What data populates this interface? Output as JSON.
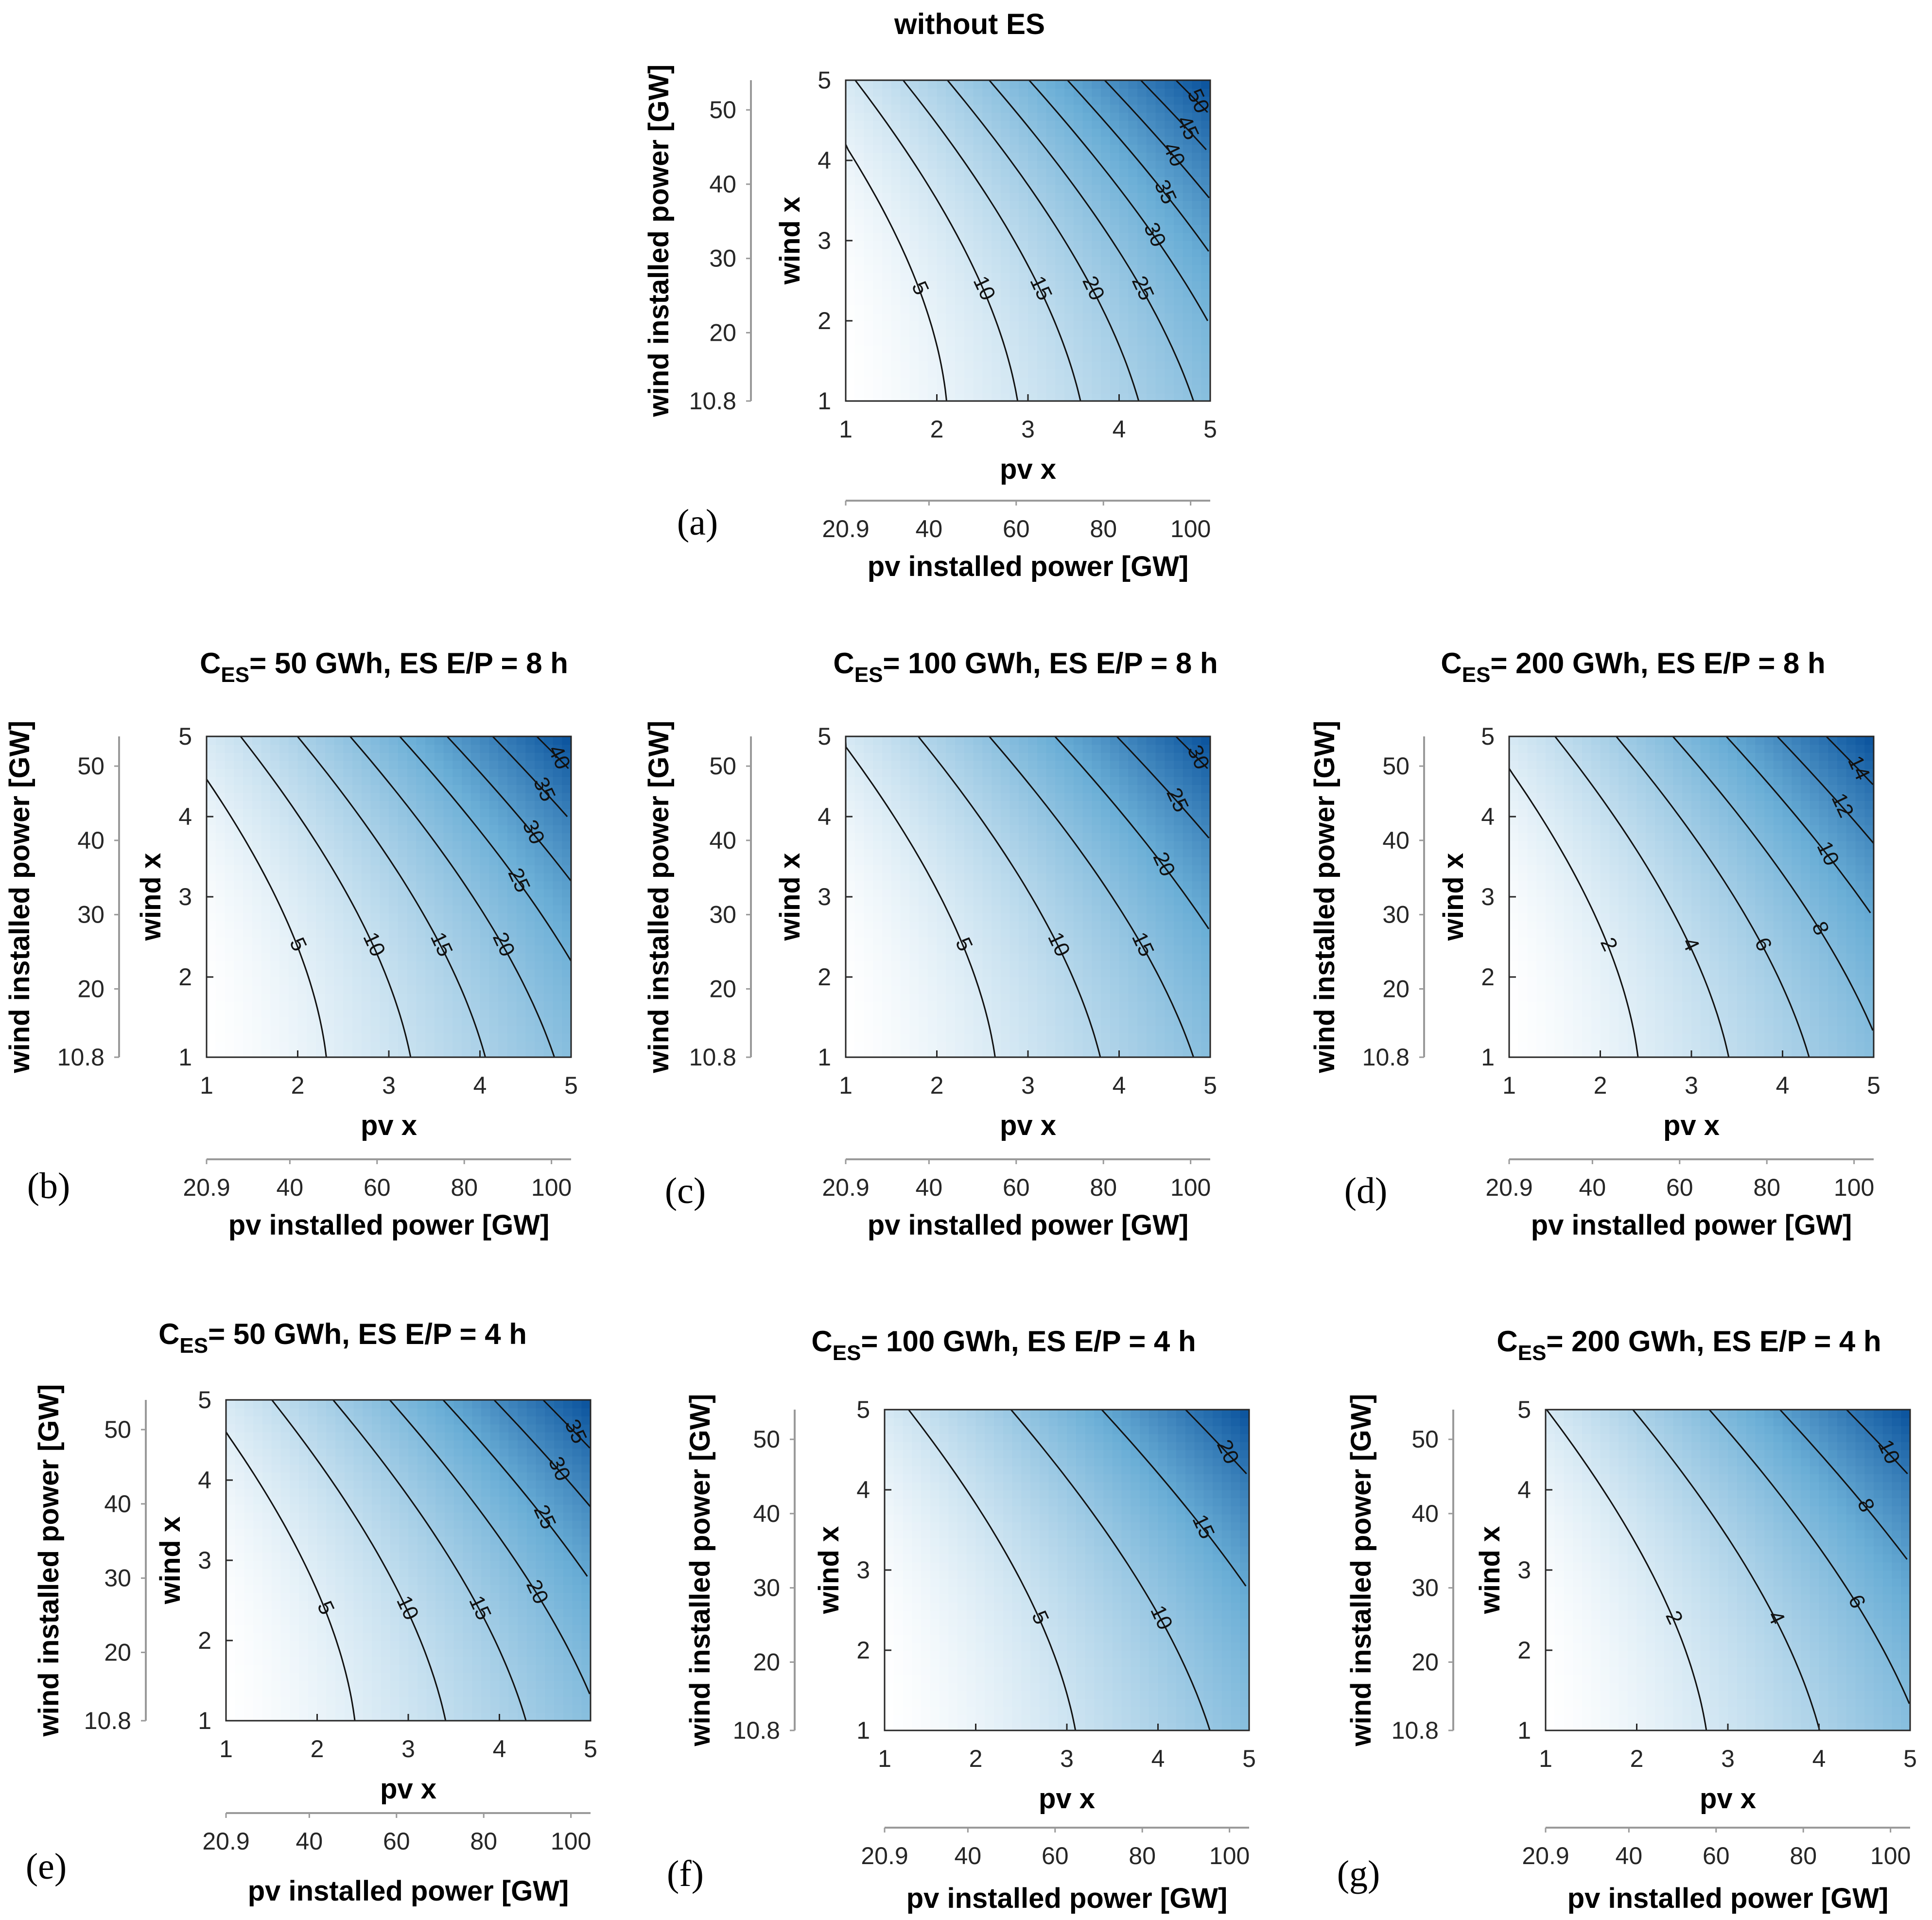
{
  "figure": {
    "colormap": {
      "low": "#ffffff",
      "mid": "#6aaed6",
      "high": "#08519c",
      "contour_line": "#111111"
    }
  },
  "chart_data": [
    {
      "type": "contour",
      "panel_letter": "(a)",
      "title": "without ES",
      "title_sub": "",
      "title_rest": "",
      "xlabel": "pv x",
      "ylabel": "wind x",
      "x2label": "pv installed power [GW]",
      "y2label": "wind installed power [GW]",
      "xlim": [
        1,
        5
      ],
      "ylim": [
        1,
        5
      ],
      "xticks": [
        "1",
        "2",
        "3",
        "4",
        "5"
      ],
      "yticks": [
        "1",
        "2",
        "3",
        "4",
        "5"
      ],
      "x2ticks": [
        "20.9",
        "40",
        "60",
        "80",
        "100"
      ],
      "y2ticks": [
        "10.8",
        "20",
        "30",
        "40",
        "50"
      ],
      "color_max": 55,
      "contour_levels": [
        5,
        10,
        15,
        20,
        25,
        30,
        35,
        40,
        45,
        50
      ],
      "level_labels": [
        "5",
        "10",
        "15",
        "20",
        "25",
        "30",
        "35",
        "40",
        "45",
        "50"
      ]
    },
    {
      "type": "contour",
      "panel_letter": "(b)",
      "title": "C",
      "title_sub": "ES",
      "title_rest": "= 50 GWh, ES E/P = 8 h",
      "xlabel": "pv x",
      "ylabel": "wind x",
      "x2label": "pv installed power [GW]",
      "y2label": "wind installed power [GW]",
      "xlim": [
        1,
        5
      ],
      "ylim": [
        1,
        5
      ],
      "xticks": [
        "1",
        "2",
        "3",
        "4",
        "5"
      ],
      "yticks": [
        "1",
        "2",
        "3",
        "4",
        "5"
      ],
      "x2ticks": [
        "20.9",
        "40",
        "60",
        "80",
        "100"
      ],
      "y2ticks": [
        "10.8",
        "20",
        "30",
        "40",
        "50"
      ],
      "color_max": 44,
      "contour_levels": [
        5,
        10,
        15,
        20,
        25,
        30,
        35,
        40
      ],
      "level_labels": [
        "5",
        "10",
        "15",
        "20",
        "25",
        "30",
        "35",
        "40"
      ]
    },
    {
      "type": "contour",
      "panel_letter": "(c)",
      "title": "C",
      "title_sub": "ES",
      "title_rest": "= 100 GWh, ES E/P = 8 h",
      "xlabel": "pv x",
      "ylabel": "wind x",
      "x2label": "pv installed power [GW]",
      "y2label": "wind installed power [GW]",
      "xlim": [
        1,
        5
      ],
      "ylim": [
        1,
        5
      ],
      "xticks": [
        "1",
        "2",
        "3",
        "4",
        "5"
      ],
      "yticks": [
        "1",
        "2",
        "3",
        "4",
        "5"
      ],
      "x2ticks": [
        "20.9",
        "40",
        "60",
        "80",
        "100"
      ],
      "y2ticks": [
        "10.8",
        "20",
        "30",
        "40",
        "50"
      ],
      "color_max": 33,
      "contour_levels": [
        5,
        10,
        15,
        20,
        25,
        30
      ],
      "level_labels": [
        "5",
        "10",
        "15",
        "20",
        "25",
        "30"
      ]
    },
    {
      "type": "contour",
      "panel_letter": "(d)",
      "title": "C",
      "title_sub": "ES",
      "title_rest": "= 200 GWh, ES E/P = 8 h",
      "xlabel": "pv x",
      "ylabel": "wind x",
      "x2label": "pv installed power [GW]",
      "y2label": "wind installed power [GW]",
      "xlim": [
        1,
        5
      ],
      "ylim": [
        1,
        5
      ],
      "xticks": [
        "1",
        "2",
        "3",
        "4",
        "5"
      ],
      "yticks": [
        "1",
        "2",
        "3",
        "4",
        "5"
      ],
      "x2ticks": [
        "20.9",
        "40",
        "60",
        "80",
        "100"
      ],
      "y2ticks": [
        "10.8",
        "20",
        "30",
        "40",
        "50"
      ],
      "color_max": 16,
      "contour_levels": [
        2,
        4,
        6,
        8,
        10,
        12,
        14
      ],
      "level_labels": [
        "2",
        "4",
        "6",
        "8",
        "10",
        "12",
        "14"
      ]
    },
    {
      "type": "contour",
      "panel_letter": "(e)",
      "title": "C",
      "title_sub": "ES",
      "title_rest": "= 50 GWh, ES E/P = 4 h",
      "xlabel": "pv x",
      "ylabel": "wind x",
      "x2label": "pv installed power [GW]",
      "y2label": "wind installed power [GW]",
      "xlim": [
        1,
        5
      ],
      "ylim": [
        1,
        5
      ],
      "xticks": [
        "1",
        "2",
        "3",
        "4",
        "5"
      ],
      "yticks": [
        "1",
        "2",
        "3",
        "4",
        "5"
      ],
      "x2ticks": [
        "20.9",
        "40",
        "60",
        "80",
        "100"
      ],
      "y2ticks": [
        "10.8",
        "20",
        "30",
        "40",
        "50"
      ],
      "color_max": 40,
      "contour_levels": [
        5,
        10,
        15,
        20,
        25,
        30,
        35
      ],
      "level_labels": [
        "5",
        "10",
        "15",
        "20",
        "25",
        "30",
        "35"
      ]
    },
    {
      "type": "contour",
      "panel_letter": "(f)",
      "title": "C",
      "title_sub": "ES",
      "title_rest": "= 100 GWh, ES E/P = 4 h",
      "xlabel": "pv x",
      "ylabel": "wind x",
      "x2label": "pv installed power [GW]",
      "y2label": "wind installed power [GW]",
      "xlim": [
        1,
        5
      ],
      "ylim": [
        1,
        5
      ],
      "xticks": [
        "1",
        "2",
        "3",
        "4",
        "5"
      ],
      "yticks": [
        "1",
        "2",
        "3",
        "4",
        "5"
      ],
      "x2ticks": [
        "20.9",
        "40",
        "60",
        "80",
        "100"
      ],
      "y2ticks": [
        "10.8",
        "20",
        "30",
        "40",
        "50"
      ],
      "color_max": 24,
      "contour_levels": [
        5,
        10,
        15,
        20
      ],
      "level_labels": [
        "5",
        "10",
        "15",
        "20"
      ]
    },
    {
      "type": "contour",
      "panel_letter": "(g)",
      "title": "C",
      "title_sub": "ES",
      "title_rest": "= 200 GWh, ES E/P = 4 h",
      "xlabel": "pv x",
      "ylabel": "wind x",
      "x2label": "pv installed power [GW]",
      "y2label": "wind installed power [GW]",
      "xlim": [
        1,
        5
      ],
      "ylim": [
        1,
        5
      ],
      "xticks": [
        "1",
        "2",
        "3",
        "4",
        "5"
      ],
      "yticks": [
        "1",
        "2",
        "3",
        "4",
        "5"
      ],
      "x2ticks": [
        "20.9",
        "40",
        "60",
        "80",
        "100"
      ],
      "y2ticks": [
        "10.8",
        "20",
        "30",
        "40",
        "50"
      ],
      "color_max": 12,
      "contour_levels": [
        2,
        4,
        6,
        8,
        10
      ],
      "level_labels": [
        "2",
        "4",
        "6",
        "8",
        "10"
      ]
    }
  ]
}
